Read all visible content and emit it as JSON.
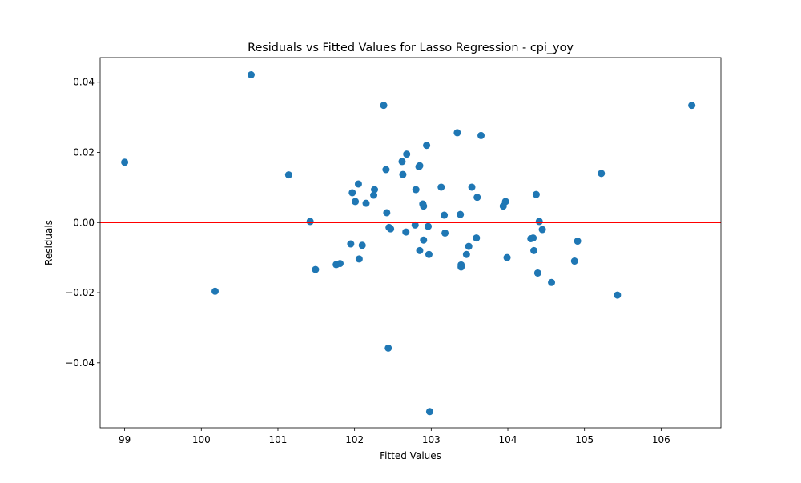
{
  "colors": {
    "points": "#1f77b4",
    "zero_line": "#ff0000",
    "axes": "#000000",
    "background": "#ffffff"
  },
  "chart_data": {
    "type": "scatter",
    "title": "Residuals vs Fitted Values for Lasso Regression - cpi_yoy",
    "xlabel": "Fitted Values",
    "ylabel": "Residuals",
    "xlim": [
      98.68,
      106.78
    ],
    "ylim": [
      -0.0585,
      0.047
    ],
    "xticks": [
      99,
      100,
      101,
      102,
      103,
      104,
      105,
      106
    ],
    "xtick_labels": [
      "99",
      "100",
      "101",
      "102",
      "103",
      "104",
      "105",
      "106"
    ],
    "yticks": [
      -0.04,
      -0.02,
      0.0,
      0.02,
      0.04
    ],
    "ytick_labels": [
      "−0.04",
      "−0.02",
      "0.00",
      "0.02",
      "0.04"
    ],
    "reference_line": {
      "y": 0,
      "color": "red"
    },
    "grid": false,
    "legend": "none",
    "points": [
      {
        "x": 99.0,
        "y": 0.0172
      },
      {
        "x": 100.18,
        "y": -0.0196
      },
      {
        "x": 100.65,
        "y": 0.0421
      },
      {
        "x": 101.14,
        "y": 0.0136
      },
      {
        "x": 101.42,
        "y": 0.0003
      },
      {
        "x": 101.49,
        "y": -0.0134
      },
      {
        "x": 101.76,
        "y": -0.012
      },
      {
        "x": 101.81,
        "y": -0.0117
      },
      {
        "x": 101.95,
        "y": -0.0061
      },
      {
        "x": 101.97,
        "y": 0.0085
      },
      {
        "x": 102.01,
        "y": 0.006
      },
      {
        "x": 102.05,
        "y": 0.011
      },
      {
        "x": 102.06,
        "y": -0.0104
      },
      {
        "x": 102.1,
        "y": -0.0065
      },
      {
        "x": 102.15,
        "y": 0.0055
      },
      {
        "x": 102.25,
        "y": 0.0078
      },
      {
        "x": 102.26,
        "y": 0.0094
      },
      {
        "x": 102.38,
        "y": 0.0334
      },
      {
        "x": 102.41,
        "y": 0.0151
      },
      {
        "x": 102.42,
        "y": 0.0028
      },
      {
        "x": 102.44,
        "y": -0.0358
      },
      {
        "x": 102.45,
        "y": -0.0014
      },
      {
        "x": 102.47,
        "y": -0.0018
      },
      {
        "x": 102.62,
        "y": 0.0174
      },
      {
        "x": 102.63,
        "y": 0.0137
      },
      {
        "x": 102.67,
        "y": -0.0027
      },
      {
        "x": 102.68,
        "y": 0.0195
      },
      {
        "x": 102.79,
        "y": -0.0007
      },
      {
        "x": 102.8,
        "y": 0.0094
      },
      {
        "x": 102.84,
        "y": 0.0159
      },
      {
        "x": 102.85,
        "y": 0.0162
      },
      {
        "x": 102.85,
        "y": -0.008
      },
      {
        "x": 102.89,
        "y": 0.0053
      },
      {
        "x": 102.9,
        "y": 0.0047
      },
      {
        "x": 102.9,
        "y": -0.005
      },
      {
        "x": 102.94,
        "y": 0.022
      },
      {
        "x": 102.96,
        "y": -0.0011
      },
      {
        "x": 102.97,
        "y": -0.0091
      },
      {
        "x": 102.98,
        "y": -0.0539
      },
      {
        "x": 103.13,
        "y": 0.0101
      },
      {
        "x": 103.17,
        "y": 0.0021
      },
      {
        "x": 103.18,
        "y": -0.003
      },
      {
        "x": 103.34,
        "y": 0.0256
      },
      {
        "x": 103.38,
        "y": 0.0023
      },
      {
        "x": 103.39,
        "y": -0.0121
      },
      {
        "x": 103.39,
        "y": -0.0127
      },
      {
        "x": 103.46,
        "y": -0.0091
      },
      {
        "x": 103.49,
        "y": -0.0068
      },
      {
        "x": 103.53,
        "y": 0.0101
      },
      {
        "x": 103.59,
        "y": -0.0044
      },
      {
        "x": 103.6,
        "y": 0.0072
      },
      {
        "x": 103.65,
        "y": 0.0248
      },
      {
        "x": 103.94,
        "y": 0.0047
      },
      {
        "x": 103.97,
        "y": 0.006
      },
      {
        "x": 103.99,
        "y": -0.01
      },
      {
        "x": 104.3,
        "y": -0.0046
      },
      {
        "x": 104.33,
        "y": -0.0044
      },
      {
        "x": 104.34,
        "y": -0.008
      },
      {
        "x": 104.37,
        "y": 0.008
      },
      {
        "x": 104.39,
        "y": -0.0144
      },
      {
        "x": 104.41,
        "y": 0.0003
      },
      {
        "x": 104.45,
        "y": -0.002
      },
      {
        "x": 104.57,
        "y": -0.0171
      },
      {
        "x": 104.87,
        "y": -0.011
      },
      {
        "x": 104.91,
        "y": -0.0053
      },
      {
        "x": 105.22,
        "y": 0.014
      },
      {
        "x": 105.43,
        "y": -0.0207
      },
      {
        "x": 106.4,
        "y": 0.0334
      }
    ]
  }
}
